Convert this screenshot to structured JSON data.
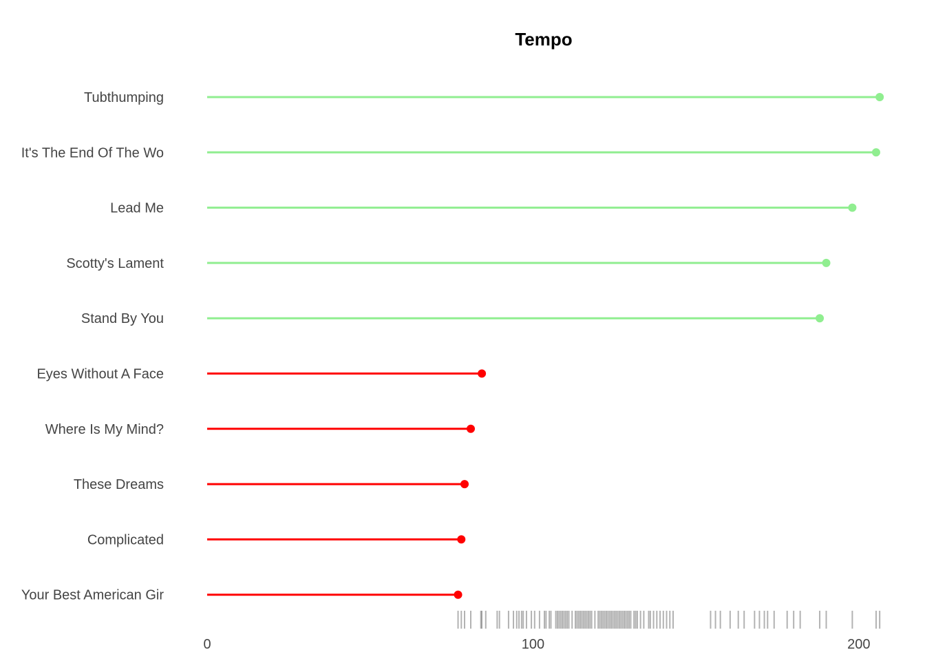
{
  "chart_data": {
    "type": "lollipop",
    "title": "Tempo",
    "xlabel": "",
    "ylabel": "",
    "xlim": [
      0,
      207
    ],
    "xticks": [
      0,
      100,
      200
    ],
    "grid": false,
    "legend": "none",
    "categories": [
      "Tubthumping",
      "It's The End Of The Wo",
      "Lead Me",
      "Scotty's Lament",
      "Stand By You",
      "Eyes Without A Face",
      "Where Is My Mind?",
      "These Dreams",
      "Complicated",
      "Your Best American Gir"
    ],
    "values": [
      206.4,
      205.3,
      198.0,
      190.0,
      188.0,
      84.3,
      80.9,
      79.0,
      78.0,
      77.0
    ],
    "colors": [
      "#90ee90",
      "#90ee90",
      "#90ee90",
      "#90ee90",
      "#90ee90",
      "#ff0000",
      "#ff0000",
      "#ff0000",
      "#ff0000",
      "#ff0000"
    ],
    "rug_values": [
      77,
      78,
      79,
      80.9,
      84,
      84.3,
      85.5,
      89,
      89.7,
      92.5,
      94,
      95,
      95.7,
      96.5,
      97,
      98,
      99.5,
      100.5,
      102,
      103.5,
      104,
      105,
      105.5,
      107,
      107.5,
      108,
      108.5,
      109,
      109.5,
      110,
      110.5,
      111,
      112,
      113,
      113.5,
      114,
      114.5,
      115,
      115.5,
      116,
      116.5,
      117,
      117.5,
      118,
      119,
      120,
      120.5,
      121,
      121.5,
      122,
      122.5,
      123,
      123.5,
      124,
      124.5,
      125,
      125.5,
      126,
      126.5,
      127,
      127.5,
      128,
      128.5,
      129,
      129.5,
      130,
      131,
      131.5,
      132,
      133,
      134,
      135.5,
      136,
      137,
      138,
      139,
      140,
      141,
      142,
      143,
      154.5,
      156,
      157.5,
      160.5,
      163,
      164.8,
      168,
      169.5,
      171,
      172,
      174,
      178,
      180,
      182,
      188,
      190,
      198,
      205.3,
      206.4
    ],
    "rug_color": "#000000"
  }
}
